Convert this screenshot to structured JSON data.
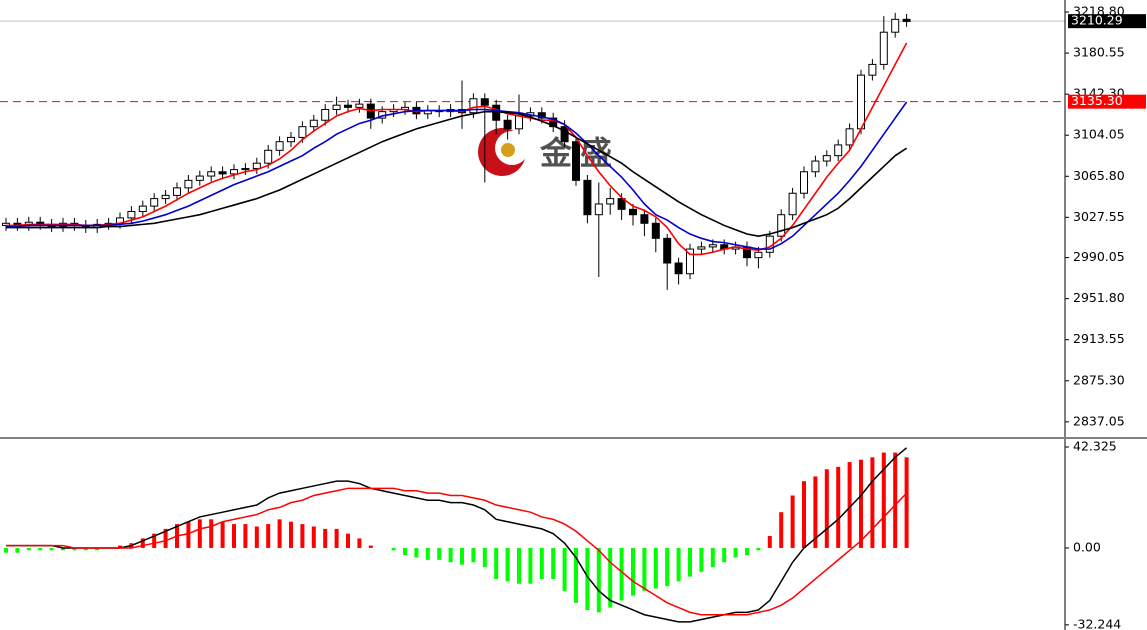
{
  "watermark": "金盛",
  "chart_data": [
    {
      "type": "candlestick",
      "ylim": [
        2822,
        3230
      ],
      "yticks": [
        {
          "value": 3218.8,
          "label": "3218.80"
        },
        3180.55,
        {
          "value": 3142.3,
          "label": "3142.30"
        },
        3104.05,
        {
          "value": 3065.8,
          "label": "3065.80"
        },
        3027.55,
        2990.05,
        {
          "value": 2951.8,
          "label": "2951.80"
        },
        2913.55,
        {
          "value": 2875.3,
          "label": "2875.30"
        },
        2837.05
      ],
      "up_color": "#ffffff",
      "down_color": "#000000",
      "open": [
        3020,
        3022,
        3020,
        3023,
        3021,
        3019,
        3022,
        3020,
        3018,
        3021,
        3022,
        3027,
        3033,
        3038,
        3045,
        3048,
        3055,
        3062,
        3066,
        3070,
        3068,
        3072,
        3073,
        3078,
        3090,
        3098,
        3102,
        3112,
        3118,
        3128,
        3132,
        3130,
        3133,
        3120,
        3126,
        3128,
        3130,
        3124,
        3127,
        3126,
        3128,
        3125,
        3138,
        3132,
        3118,
        3110,
        3122,
        3125,
        3120,
        3112,
        3098,
        3062,
        3030,
        3040,
        3045,
        3035,
        3030,
        3022,
        3008,
        2985,
        2975,
        2998,
        3000,
        3002,
        2998,
        3000,
        2990,
        2995,
        3010,
        3030,
        3050,
        3070,
        3080,
        3085,
        3095,
        3110,
        3160,
        3170,
        3200,
        3212
      ],
      "high": [
        3027,
        3027,
        3028,
        3028,
        3026,
        3027,
        3027,
        3025,
        3026,
        3027,
        3032,
        3038,
        3043,
        3050,
        3053,
        3060,
        3067,
        3071,
        3075,
        3075,
        3077,
        3078,
        3083,
        3095,
        3103,
        3107,
        3117,
        3123,
        3133,
        3140,
        3137,
        3138,
        3138,
        3131,
        3133,
        3135,
        3135,
        3132,
        3132,
        3133,
        3155,
        3143,
        3143,
        3137,
        3123,
        3142,
        3130,
        3130,
        3125,
        3118,
        3103,
        3067,
        3060,
        3055,
        3050,
        3040,
        3035,
        3027,
        3012,
        2990,
        3003,
        3005,
        3007,
        3007,
        3005,
        3005,
        3000,
        3015,
        3035,
        3055,
        3075,
        3085,
        3090,
        3100,
        3115,
        3165,
        3175,
        3215,
        3218,
        3217
      ],
      "low": [
        3015,
        3015,
        3015,
        3016,
        3014,
        3014,
        3015,
        3013,
        3013,
        3016,
        3017,
        3022,
        3028,
        3033,
        3040,
        3043,
        3050,
        3057,
        3061,
        3063,
        3063,
        3067,
        3068,
        3073,
        3085,
        3093,
        3097,
        3107,
        3113,
        3123,
        3125,
        3125,
        3110,
        3115,
        3121,
        3123,
        3119,
        3119,
        3121,
        3121,
        3110,
        3120,
        3060,
        3105,
        3100,
        3105,
        3117,
        3115,
        3107,
        3093,
        3057,
        3022,
        2972,
        3030,
        3025,
        3020,
        3010,
        2995,
        2960,
        2965,
        2970,
        2993,
        2995,
        2993,
        2993,
        2982,
        2980,
        2990,
        3005,
        3025,
        3045,
        3065,
        3075,
        3080,
        3090,
        3105,
        3155,
        3165,
        3195,
        3205
      ],
      "close": [
        3022,
        3020,
        3023,
        3021,
        3019,
        3022,
        3020,
        3018,
        3021,
        3022,
        3027,
        3033,
        3038,
        3045,
        3048,
        3055,
        3062,
        3066,
        3070,
        3068,
        3072,
        3073,
        3078,
        3090,
        3098,
        3102,
        3112,
        3118,
        3128,
        3132,
        3130,
        3133,
        3120,
        3126,
        3128,
        3130,
        3124,
        3127,
        3126,
        3128,
        3125,
        3138,
        3132,
        3118,
        3110,
        3122,
        3125,
        3120,
        3112,
        3098,
        3062,
        3030,
        3040,
        3045,
        3035,
        3030,
        3022,
        3008,
        2985,
        2975,
        2998,
        3000,
        3002,
        2998,
        3000,
        2990,
        2995,
        3010,
        3030,
        3050,
        3070,
        3080,
        3085,
        3095,
        3110,
        3160,
        3170,
        3200,
        3212,
        3210
      ],
      "lines": [
        {
          "color": "#ff0000",
          "values": [
            3020,
            3020,
            3021,
            3021,
            3021,
            3021,
            3021,
            3020,
            3020,
            3021,
            3022,
            3025,
            3028,
            3033,
            3038,
            3044,
            3050,
            3055,
            3060,
            3064,
            3067,
            3070,
            3072,
            3076,
            3082,
            3090,
            3100,
            3108,
            3115,
            3122,
            3126,
            3129,
            3127,
            3128,
            3128,
            3128,
            3126,
            3127,
            3127,
            3127,
            3126,
            3130,
            3131,
            3128,
            3124,
            3122,
            3120,
            3118,
            3118,
            3114,
            3102,
            3085,
            3070,
            3057,
            3046,
            3038,
            3034,
            3028,
            3018,
            3003,
            2993,
            2993,
            2995,
            2998,
            3000,
            2998,
            2997,
            3000,
            3008,
            3020,
            3035,
            3050,
            3065,
            3078,
            3090,
            3110,
            3130,
            3150,
            3170,
            3190
          ]
        },
        {
          "color": "#0000cc",
          "values": [
            3019,
            3019,
            3020,
            3020,
            3020,
            3020,
            3020,
            3020,
            3020,
            3020,
            3021,
            3022,
            3024,
            3027,
            3030,
            3034,
            3038,
            3043,
            3048,
            3053,
            3058,
            3062,
            3066,
            3070,
            3075,
            3080,
            3085,
            3092,
            3098,
            3105,
            3110,
            3115,
            3118,
            3122,
            3124,
            3126,
            3127,
            3127,
            3127,
            3127,
            3127,
            3128,
            3128,
            3127,
            3126,
            3125,
            3123,
            3121,
            3119,
            3114,
            3106,
            3096,
            3085,
            3075,
            3065,
            3053,
            3040,
            3030,
            3025,
            3018,
            3012,
            3008,
            3005,
            3004,
            3002,
            3000,
            2998,
            2998,
            3003,
            3010,
            3020,
            3030,
            3040,
            3050,
            3062,
            3075,
            3090,
            3105,
            3120,
            3135
          ]
        },
        {
          "color": "#000000",
          "values": [
            3018,
            3018,
            3018,
            3018,
            3018,
            3018,
            3018,
            3018,
            3018,
            3019,
            3019,
            3020,
            3021,
            3022,
            3024,
            3026,
            3028,
            3030,
            3033,
            3036,
            3039,
            3042,
            3045,
            3049,
            3053,
            3058,
            3063,
            3068,
            3073,
            3078,
            3083,
            3088,
            3093,
            3098,
            3102,
            3106,
            3110,
            3113,
            3116,
            3119,
            3122,
            3124,
            3126,
            3126,
            3125,
            3124,
            3121,
            3117,
            3113,
            3108,
            3102,
            3096,
            3090,
            3084,
            3078,
            3070,
            3063,
            3056,
            3049,
            3042,
            3036,
            3030,
            3025,
            3020,
            3016,
            3012,
            3010,
            3012,
            3015,
            3018,
            3022,
            3026,
            3030,
            3036,
            3045,
            3055,
            3065,
            3075,
            3085,
            3092
          ]
        }
      ],
      "price_labels": [
        {
          "value": 3210.29,
          "label": "3210.29",
          "color": "#000000",
          "line_color": "#c0c0c0",
          "dashed": false
        },
        {
          "value": 3135.3,
          "label": "3135.30",
          "color": "#ff0000",
          "line_color": "#ff0000",
          "dashed": true
        }
      ]
    },
    {
      "type": "macd",
      "ylim": [
        -34.4,
        46.1
      ],
      "yticks": [
        42.325,
        {
          "value": 0,
          "label": "0.00"
        },
        -32.244
      ],
      "histogram": {
        "positive_color": "#ff0000",
        "negative_color": "#00ff00",
        "values": [
          -2,
          -2,
          -1,
          -1,
          -1,
          -1,
          -1,
          -1,
          -1,
          0,
          1,
          2,
          4,
          6,
          8,
          10,
          11,
          12,
          12,
          11,
          10,
          10,
          9,
          10,
          12,
          11,
          10,
          9,
          8,
          8,
          6,
          4,
          1,
          0,
          -1,
          -3,
          -4,
          -5,
          -5,
          -6,
          -7,
          -6,
          -8,
          -13,
          -14,
          -15,
          -15,
          -13,
          -13,
          -18,
          -23,
          -26,
          -27,
          -25,
          -22,
          -20,
          -18,
          -17,
          -16,
          -14,
          -12,
          -10,
          -8,
          -6,
          -4,
          -3,
          -1,
          5,
          15,
          22,
          28,
          30,
          33,
          34,
          36,
          37,
          38,
          40,
          40,
          38
        ]
      },
      "series": [
        {
          "color": "#000000",
          "values": [
            1,
            1,
            1,
            1,
            1,
            0,
            0,
            0,
            0,
            0,
            0,
            1,
            3,
            5,
            7,
            9,
            11,
            13,
            14,
            15,
            16,
            17,
            18,
            21,
            23,
            24,
            25,
            26,
            27,
            28,
            28,
            27,
            25,
            24,
            23,
            22,
            21,
            20,
            20,
            19,
            19,
            18,
            16,
            12,
            11,
            10,
            9,
            8,
            6,
            2,
            -4,
            -12,
            -18,
            -22,
            -24,
            -26,
            -28,
            -29,
            -30,
            -31,
            -31,
            -30,
            -29,
            -28,
            -27,
            -27,
            -26,
            -22,
            -14,
            -6,
            0,
            4,
            8,
            12,
            17,
            22,
            28,
            33,
            38,
            42
          ]
        },
        {
          "color": "#ff0000",
          "values": [
            1,
            1,
            1,
            1,
            1,
            1,
            0,
            0,
            0,
            0,
            0,
            0,
            1,
            2,
            3,
            5,
            6,
            8,
            9,
            11,
            12,
            13,
            14,
            16,
            17,
            19,
            20,
            22,
            23,
            24,
            25,
            25,
            25,
            25,
            25,
            24,
            24,
            23,
            23,
            22,
            22,
            21,
            20,
            18,
            17,
            16,
            15,
            13,
            12,
            10,
            7,
            3,
            -1,
            -6,
            -10,
            -14,
            -17,
            -20,
            -23,
            -25,
            -27,
            -28,
            -28,
            -28,
            -28,
            -28,
            -27,
            -26,
            -24,
            -21,
            -17,
            -13,
            -9,
            -5,
            -1,
            3,
            8,
            13,
            18,
            23
          ]
        }
      ]
    }
  ]
}
